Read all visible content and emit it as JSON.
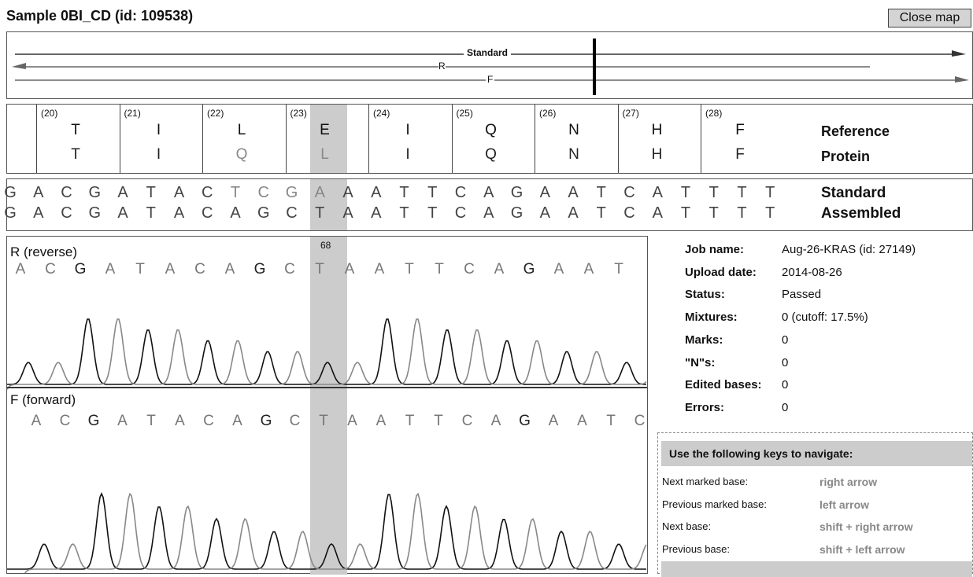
{
  "header": {
    "title": "Sample 0BI_CD (id: 109538)",
    "button": "Close map"
  },
  "map": {
    "standard": "Standard",
    "reverse": "R",
    "forward": "F"
  },
  "protein": {
    "row_labels": [
      "Reference",
      "Protein"
    ],
    "codons": [
      {
        "number": "(20)",
        "reference": "T",
        "protein": "T"
      },
      {
        "number": "(21)",
        "reference": "I",
        "protein": "I"
      },
      {
        "number": "(22)",
        "reference": "L",
        "protein": "Q"
      },
      {
        "number": "(23)",
        "reference": "E",
        "protein": "L"
      },
      {
        "number": "(24)",
        "reference": "I",
        "protein": "I"
      },
      {
        "number": "(25)",
        "reference": "Q",
        "protein": "Q"
      },
      {
        "number": "(26)",
        "reference": "N",
        "protein": "N"
      },
      {
        "number": "(27)",
        "reference": "H",
        "protein": "H"
      },
      {
        "number": "(28)",
        "reference": "F",
        "protein": "F"
      }
    ]
  },
  "dna": {
    "labels": [
      "Standard",
      "Assembled"
    ],
    "standard": [
      "G",
      "A",
      "C",
      "G",
      "A",
      "T",
      "A",
      "C",
      "T",
      "C",
      "G",
      "A",
      "A",
      "A",
      "T",
      "T",
      "C",
      "A",
      "G",
      "A",
      "A",
      "T",
      "C",
      "A",
      "T",
      "T",
      "T",
      "T"
    ],
    "assembled": [
      "G",
      "A",
      "C",
      "G",
      "A",
      "T",
      "A",
      "C",
      "A",
      "G",
      "C",
      "T",
      "A",
      "A",
      "T",
      "T",
      "C",
      "A",
      "G",
      "A",
      "A",
      "T",
      "C",
      "A",
      "T",
      "T",
      "T",
      "T"
    ]
  },
  "traces": {
    "position": "68",
    "reverse": {
      "label": "R (reverse)",
      "bases": [
        "A",
        "C",
        "G",
        "A",
        "T",
        "A",
        "C",
        "A",
        "G",
        "C",
        "T",
        "A",
        "A",
        "T",
        "T",
        "C",
        "A",
        "G",
        "A",
        "A",
        "T"
      ]
    },
    "forward": {
      "label": "F (forward)",
      "bases": [
        "A",
        "C",
        "G",
        "A",
        "T",
        "A",
        "C",
        "A",
        "G",
        "C",
        "T",
        "A",
        "A",
        "T",
        "T",
        "C",
        "A",
        "G",
        "A",
        "A",
        "T",
        "C"
      ]
    }
  },
  "info": [
    [
      "Job name:",
      "Aug-26-KRAS (id: 27149)"
    ],
    [
      "Upload date:",
      "2014-08-26"
    ],
    [
      "Status:",
      "Passed"
    ],
    [
      "Mixtures:",
      "0 (cutoff: 17.5%)"
    ],
    [
      "Marks:",
      "0"
    ],
    [
      "\"N\"s:",
      "0"
    ],
    [
      "Edited bases:",
      "0"
    ],
    [
      "Errors:",
      "0"
    ]
  ],
  "keys": {
    "title": "Use the following keys to navigate:",
    "rows": [
      [
        "Next marked base:",
        "right arrow"
      ],
      [
        "Previous marked base:",
        "left arrow"
      ],
      [
        "Next base:",
        "shift + right arrow"
      ],
      [
        "Previous base:",
        "shift + left arrow"
      ]
    ]
  }
}
